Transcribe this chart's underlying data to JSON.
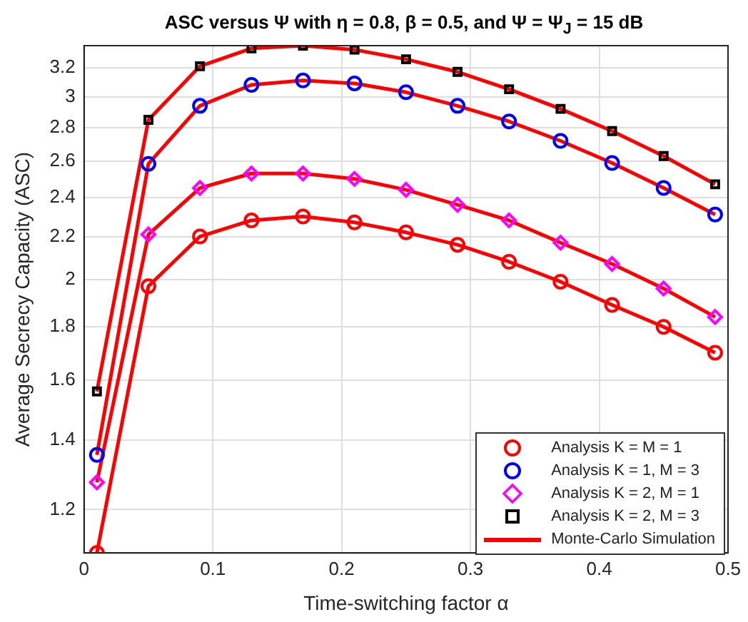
{
  "chart_data": {
    "type": "line",
    "title": "ASC versus Ψ with η = 0.8, β = 0.5, and Ψ = Ψ$_{J}$ = 15 dB",
    "xlabel": "Time-switching factor α",
    "ylabel": "Average Secrecy Capacity (ASC)",
    "x": [
      0.01,
      0.05,
      0.09,
      0.13,
      0.17,
      0.21,
      0.25,
      0.29,
      0.33,
      0.37,
      0.41,
      0.45,
      0.49
    ],
    "xlim": [
      0,
      0.5
    ],
    "xticks": [
      0,
      0.1,
      0.2,
      0.3,
      0.4,
      0.5
    ],
    "ylim": [
      1.09,
      3.36
    ],
    "yticks": [
      1.2,
      1.4,
      1.6,
      1.8,
      2,
      2.2,
      2.4,
      2.6,
      2.8,
      3,
      3.2
    ],
    "log": "y",
    "grid": true,
    "legend": "bottom right",
    "line_style": "solid",
    "series": [
      {
        "name": "Analysis K = M = 1",
        "type": "scatter",
        "marker": "circle",
        "color": "#ff0000",
        "values": [
          1.09,
          1.97,
          2.2,
          2.28,
          2.3,
          2.27,
          2.22,
          2.16,
          2.08,
          1.99,
          1.89,
          1.8,
          1.7
        ]
      },
      {
        "name": "Analysis K = 1, M = 3",
        "type": "scatter",
        "marker": "circle",
        "color": "#0000ff",
        "values": [
          1.355,
          2.585,
          2.94,
          3.08,
          3.11,
          3.09,
          3.03,
          2.94,
          2.84,
          2.72,
          2.59,
          2.45,
          2.31
        ]
      },
      {
        "name": "Analysis K = 2, M = 1",
        "type": "scatter",
        "marker": "diamond",
        "color": "#ff00ff",
        "values": [
          1.275,
          2.21,
          2.45,
          2.53,
          2.53,
          2.5,
          2.44,
          2.36,
          2.28,
          2.17,
          2.07,
          1.96,
          1.84
        ]
      },
      {
        "name": "Analysis K = 2, M = 3",
        "type": "scatter",
        "marker": "square",
        "color": "#000000",
        "values": [
          1.56,
          2.85,
          3.21,
          3.34,
          3.36,
          3.33,
          3.26,
          3.17,
          3.05,
          2.92,
          2.78,
          2.63,
          2.47
        ]
      },
      {
        "name": "Monte-Carlo Simulation",
        "type": "line",
        "marker": "none",
        "color": "#ff0000",
        "values": [
          1.09,
          1.97,
          2.2,
          2.28,
          2.3,
          2.27,
          2.22,
          2.16,
          2.08,
          1.99,
          1.89,
          1.8,
          1.7
        ]
      },
      {
        "type": "line",
        "marker": "none",
        "color": "#ff0000",
        "values": [
          1.355,
          2.585,
          2.94,
          3.08,
          3.11,
          3.09,
          3.03,
          2.94,
          2.84,
          2.72,
          2.59,
          2.45,
          2.31
        ]
      },
      {
        "type": "line",
        "marker": "none",
        "color": "#ff0000",
        "values": [
          1.275,
          2.21,
          2.45,
          2.53,
          2.53,
          2.5,
          2.44,
          2.36,
          2.28,
          2.17,
          2.07,
          1.96,
          1.84
        ]
      },
      {
        "type": "line",
        "marker": "none",
        "color": "#ff0000",
        "values": [
          1.56,
          2.85,
          3.21,
          3.34,
          3.36,
          3.33,
          3.26,
          3.17,
          3.05,
          2.92,
          2.78,
          2.63,
          2.47
        ]
      }
    ]
  }
}
